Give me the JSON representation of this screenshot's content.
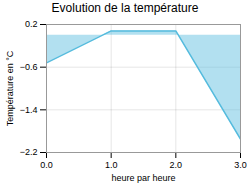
{
  "chart_data": {
    "type": "area",
    "title": "Evolution de la température",
    "xlabel": "heure par heure",
    "ylabel": "Température en °C",
    "x": [
      0,
      1,
      2,
      3
    ],
    "values": [
      -0.52,
      0.08,
      0.08,
      -1.95
    ],
    "color": "#55bbdd",
    "xlim": [
      0,
      3
    ],
    "ylim": [
      -2.2,
      0.2
    ],
    "xticks": [
      0,
      1,
      2,
      3
    ],
    "yticks": [
      0.2,
      -0.6,
      -1.4,
      -2.2
    ],
    "grid": true
  }
}
